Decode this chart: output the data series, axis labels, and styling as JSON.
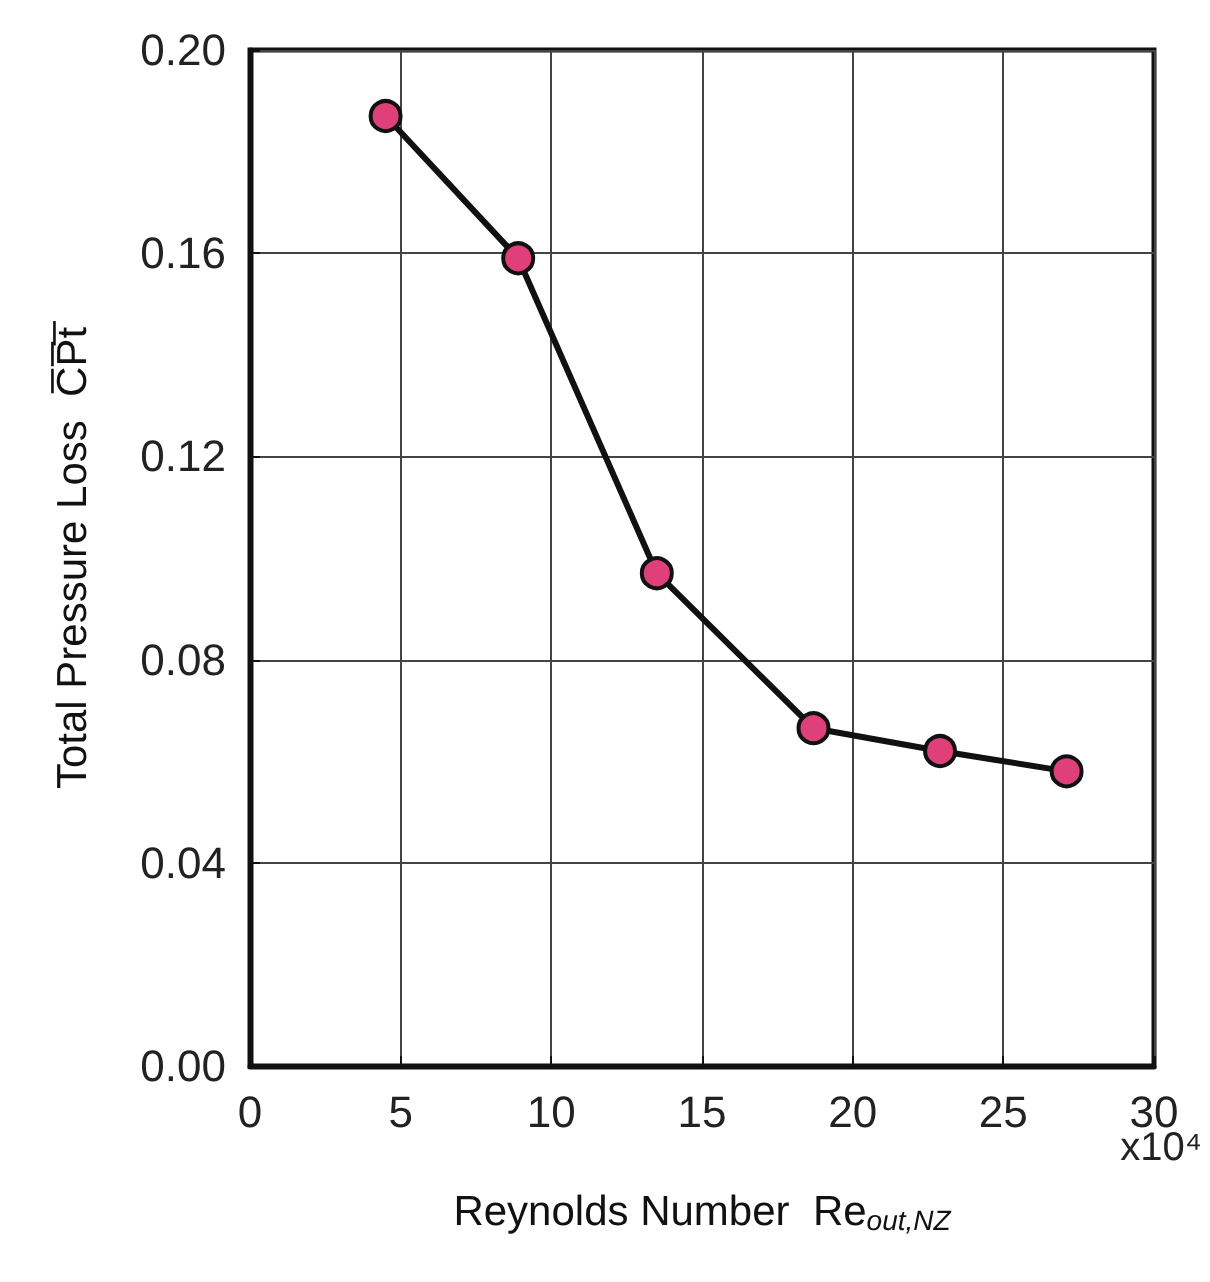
{
  "chart_data": {
    "type": "line",
    "xlabel": "Reynolds Number  Re$_{out,NZ}$",
    "ylabel": "Total Pressure Loss  C̅P̅t̅",
    "annotations": [
      "x10⁴"
    ],
    "x": [
      4.5,
      8.9,
      13.5,
      18.7,
      22.9,
      27.1
    ],
    "series": [
      {
        "color": "#e0407a",
        "values": [
          0.187,
          0.159,
          0.097,
          0.0665,
          0.062,
          0.058
        ]
      }
    ],
    "xlim": [
      0,
      30
    ],
    "xticks": [
      0,
      5,
      10,
      15,
      20,
      25,
      30
    ],
    "ylim": [
      0,
      0.2
    ],
    "yticks": [
      {
        "value": 0,
        "label": "0.00"
      },
      {
        "value": 0.04,
        "label": "0.04"
      },
      {
        "value": 0.08,
        "label": "0.08"
      },
      {
        "value": 0.12,
        "label": "0.12"
      },
      {
        "value": 0.16,
        "label": "0.16"
      },
      {
        "value": 0.2,
        "label": "0.20"
      }
    ],
    "grid": true,
    "marker": "circle",
    "line_style": "solid"
  }
}
